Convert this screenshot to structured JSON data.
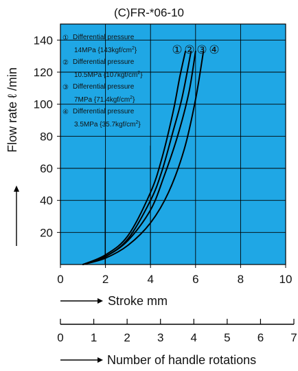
{
  "chart_data": {
    "type": "line",
    "title": "(C)FR-*06-10",
    "xlabel": "Stroke  mm",
    "ylabel": "Flow rate  ℓ /min",
    "secondary_xlabel": "Number of handle rotations",
    "xlim": [
      0,
      10
    ],
    "ylim": [
      0,
      150
    ],
    "secondary_xlim": [
      0,
      7
    ],
    "x_ticks": [
      "0",
      "2",
      "4",
      "6",
      "8",
      "10"
    ],
    "y_ticks": [
      "20",
      "40",
      "60",
      "80",
      "100",
      "120",
      "140"
    ],
    "secondary_x_ticks": [
      "0",
      "1",
      "2",
      "3",
      "4",
      "5",
      "6",
      "7"
    ],
    "grid": true,
    "background_color": "#1fa7e5",
    "line_color": "#000000",
    "series": [
      {
        "name": "① Differential pressure 14MPa {143kgf/cm²}",
        "label": "①",
        "x": [
          1.0,
          2.0,
          3.0,
          4.0,
          4.5,
          5.0,
          5.3,
          5.55
        ],
        "y": [
          0,
          6,
          18,
          45,
          66,
          95,
          117,
          133
        ]
      },
      {
        "name": "② Differential pressure 10.5MPa {107kgf/cm²}",
        "label": "②",
        "x": [
          1.0,
          2.0,
          3.0,
          4.0,
          4.5,
          5.0,
          5.4,
          5.8
        ],
        "y": [
          0,
          5,
          16,
          40,
          58,
          83,
          104,
          133
        ]
      },
      {
        "name": "③ Differential pressure 7MPa {71.4kgf/cm²}",
        "label": "③",
        "x": [
          1.0,
          2.0,
          3.0,
          4.0,
          4.6,
          5.2,
          5.7,
          6.0
        ],
        "y": [
          0,
          5,
          15,
          34,
          55,
          80,
          107,
          133
        ]
      },
      {
        "name": "④ Differential pressure 3.5MPa {35.7kgf/cm²}",
        "label": "④",
        "x": [
          1.0,
          2.0,
          3.0,
          4.0,
          4.8,
          5.5,
          6.0,
          6.35
        ],
        "y": [
          0,
          4,
          12,
          26,
          45,
          72,
          103,
          133
        ]
      }
    ],
    "legend": [
      {
        "num": "①",
        "title": "Differential pressure",
        "value": "14MPa {143kgf/cm",
        "sup": "2",
        "close": "}"
      },
      {
        "num": "②",
        "title": "Differential pressure",
        "value": "10.5MPa {107kgf/cm",
        "sup": "2",
        "close": "}"
      },
      {
        "num": "③",
        "title": "Differential pressure",
        "value": "7MPa {71.4kgf/cm",
        "sup": "2",
        "close": "}"
      },
      {
        "num": "④",
        "title": "Differential pressure",
        "value": "3.5MPa {35.7kgf/cm",
        "sup": "2",
        "close": "}"
      }
    ],
    "curve_labels": [
      "①",
      "②",
      "③",
      "④"
    ]
  }
}
